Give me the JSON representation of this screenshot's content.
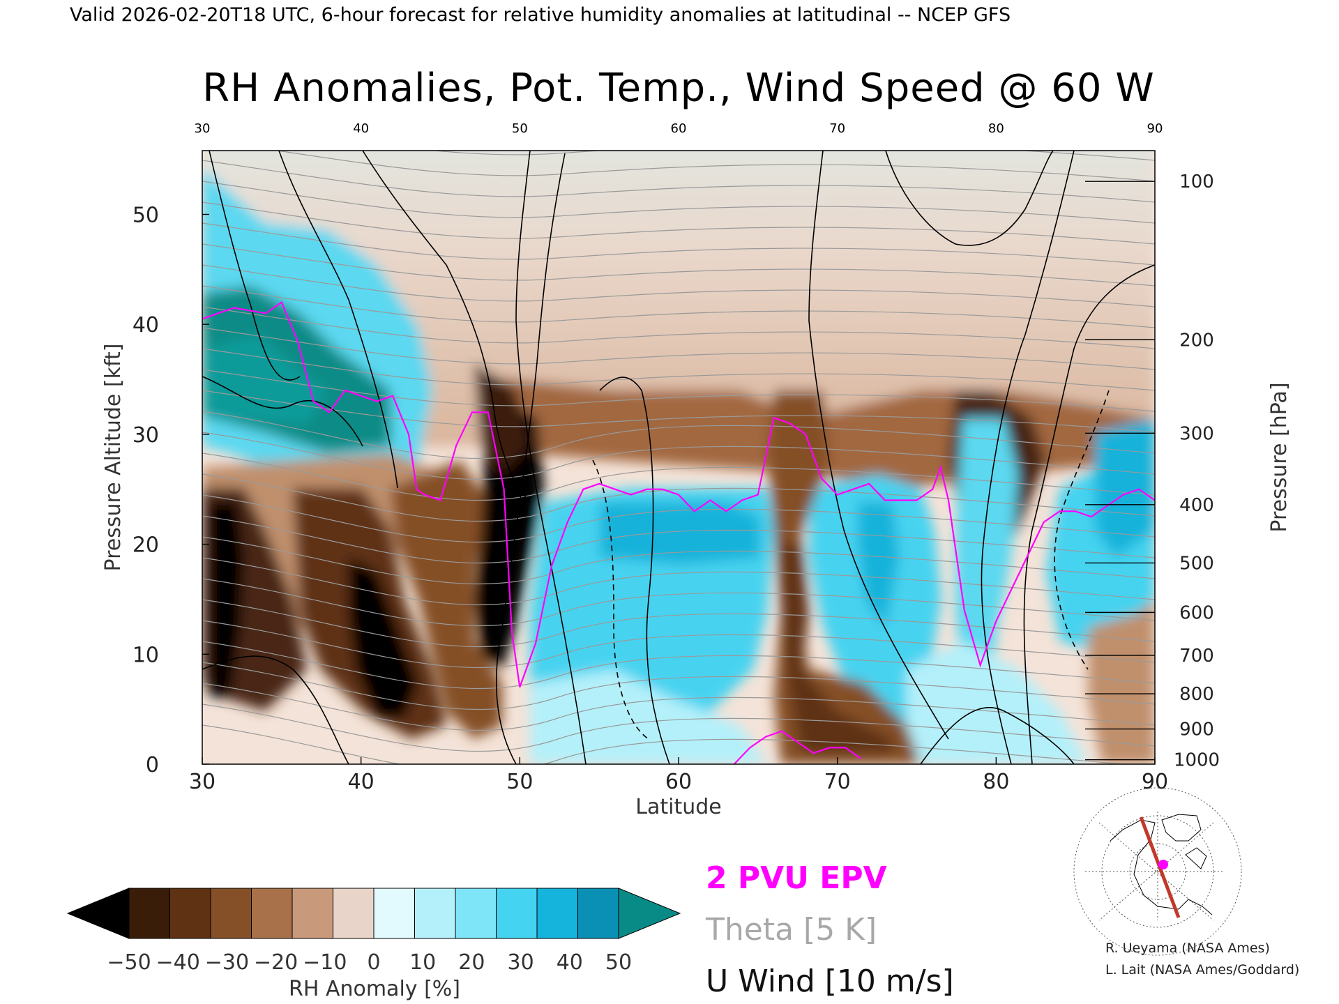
{
  "header": {
    "valid_line": "Valid 2026-02-20T18 UTC, 6-hour forecast for relative humidity anomalies at latitudinal -- NCEP GFS",
    "title": "RH Anomalies, Pot. Temp., Wind Speed @ 60 W"
  },
  "legend": {
    "epv_label": "2 PVU EPV",
    "theta_label": "Theta [5 K]",
    "uwind_label": "U Wind [10 m/s]"
  },
  "colorbar": {
    "label": "RH Anomaly [%]",
    "ticks": [
      "−50",
      "−40",
      "−30",
      "−20",
      "−10",
      "0",
      "10",
      "20",
      "30",
      "40",
      "50"
    ],
    "colors": [
      "#000000",
      "#3a1d08",
      "#5e3213",
      "#855028",
      "#a97149",
      "#c8997a",
      "#e8d4c8",
      "#e2fafe",
      "#b4f0fa",
      "#7ee5f8",
      "#44d3f0",
      "#14b4dc",
      "#0a8fb5",
      "#088b86"
    ]
  },
  "credits": {
    "line1": "R. Ueyama (NASA Ames)",
    "line2": "L. Lait (NASA Ames/Goddard)"
  },
  "colors": {
    "epv": "#ff00ff",
    "theta": "#9a9a9a",
    "uwind": "#000000",
    "section_line": "#c0392b"
  },
  "chart_data": {
    "type": "heatmap",
    "title": "RH Anomalies, Pot. Temp., Wind Speed @ 60 W",
    "xlabel": "Latitude",
    "ylabel": "Pressure Altitude [kft]",
    "ylabel_right": "Pressure [hPa]",
    "xlim": [
      30,
      90
    ],
    "ylim": [
      0,
      55.8
    ],
    "x_ticks": [
      "30",
      "40",
      "50",
      "60",
      "70",
      "80",
      "90"
    ],
    "y_ticks": [
      "0",
      "10",
      "20",
      "30",
      "40",
      "50"
    ],
    "right_ticks": [
      {
        "label": "100",
        "kft": 53.0
      },
      {
        "label": "200",
        "kft": 38.6
      },
      {
        "label": "300",
        "kft": 30.1
      },
      {
        "label": "400",
        "kft": 23.6
      },
      {
        "label": "500",
        "kft": 18.3
      },
      {
        "label": "600",
        "kft": 13.8
      },
      {
        "label": "700",
        "kft": 9.9
      },
      {
        "label": "800",
        "kft": 6.4
      },
      {
        "label": "900",
        "kft": 3.2
      },
      {
        "label": "1000",
        "kft": 0.4
      }
    ],
    "epv_2pvu": {
      "name": "2 PVU EPV",
      "lat": [
        30,
        32,
        34,
        35,
        36,
        37,
        38,
        39,
        40,
        41,
        42,
        43,
        43.5,
        44,
        45,
        46,
        47,
        48,
        49,
        49.5,
        50,
        51,
        52,
        53,
        54,
        55,
        56,
        57,
        58,
        59,
        60,
        61,
        62,
        63,
        64,
        65,
        66,
        67,
        68,
        69,
        70,
        71,
        72,
        73,
        74,
        75,
        76,
        76.5,
        77,
        78,
        79,
        80,
        81,
        82,
        83,
        84,
        85,
        86,
        87,
        88,
        89,
        90
      ],
      "kft": [
        40.5,
        41.5,
        41.0,
        42.0,
        38.5,
        33.0,
        32.0,
        34.0,
        33.5,
        33.0,
        33.5,
        30.0,
        25.0,
        24.5,
        24.0,
        29.0,
        32.0,
        32.0,
        25.0,
        12.0,
        7.0,
        11.0,
        18.0,
        22.0,
        25.0,
        25.5,
        25.0,
        24.5,
        25.0,
        25.0,
        24.5,
        23.0,
        24.0,
        23.0,
        24.0,
        24.5,
        31.5,
        31.0,
        30.0,
        26.0,
        24.5,
        25.0,
        25.5,
        24.0,
        24.0,
        24.0,
        25.0,
        27.0,
        24.0,
        14.0,
        9.0,
        13.0,
        16.0,
        19.0,
        22.0,
        23.0,
        23.0,
        22.5,
        23.5,
        24.5,
        25.0,
        24.0
      ]
    },
    "epv_low_segment": {
      "lat": [
        63.5,
        64.5,
        65.5,
        66.5,
        67.5,
        68.5,
        69.5,
        70.5,
        71.5
      ],
      "kft": [
        0.0,
        1.5,
        2.5,
        3.0,
        2.0,
        1.0,
        1.5,
        1.5,
        0.5
      ]
    },
    "rh_anomaly_regions": [
      {
        "desc": "moist upper-left",
        "lat_range": [
          30,
          43
        ],
        "kft_range": [
          28,
          52
        ],
        "value": 45
      },
      {
        "desc": "dry stratosphere",
        "lat_range": [
          30,
          90
        ],
        "kft_range": [
          32,
          55.8
        ],
        "value": -10
      },
      {
        "desc": "very dry low-left",
        "lat_range": [
          30,
          33
        ],
        "kft_range": [
          6,
          24
        ],
        "value": -50
      },
      {
        "desc": "very dry 39-42",
        "lat_range": [
          39,
          42
        ],
        "kft_range": [
          5,
          19
        ],
        "value": -50
      },
      {
        "desc": "dry tongue 49-51",
        "lat_range": [
          49,
          51.5
        ],
        "kft_range": [
          9,
          24
        ],
        "value": -50
      },
      {
        "desc": "moist band 52-90",
        "lat_range": [
          52,
          90
        ],
        "kft_range": [
          2,
          26
        ],
        "value": 30
      },
      {
        "desc": "dry column 67-69",
        "lat_range": [
          66,
          70
        ],
        "kft_range": [
          2,
          19
        ],
        "value": -30
      },
      {
        "desc": "dry core 79-82",
        "lat_range": [
          78,
          83
        ],
        "kft_range": [
          24,
          32
        ],
        "value": -35
      }
    ]
  }
}
